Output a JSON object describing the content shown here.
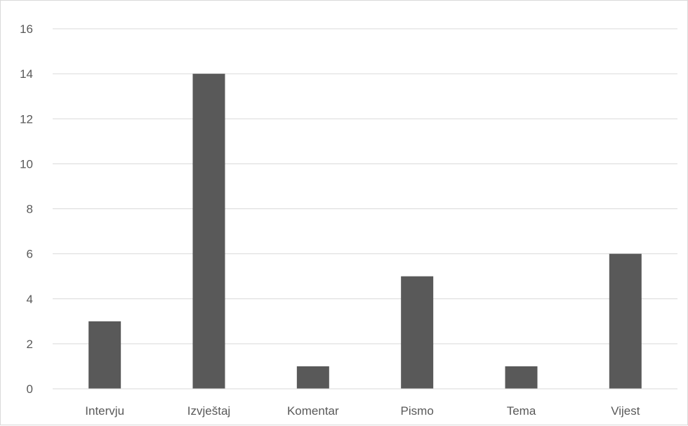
{
  "chart_data": {
    "type": "bar",
    "title": "",
    "xlabel": "",
    "ylabel": "",
    "categories": [
      "Intervju",
      "Izvještaj",
      "Komentar",
      "Pismo",
      "Tema",
      "Vijest"
    ],
    "values": [
      3,
      14,
      1,
      5,
      1,
      6
    ],
    "ylim": [
      0,
      16
    ],
    "yticks": [
      "0",
      "2",
      "4",
      "6",
      "8",
      "10",
      "12",
      "14",
      "16"
    ],
    "grid": true,
    "legend": "none",
    "bar_color": "#595959",
    "grid_color": "#d9d9d9"
  }
}
